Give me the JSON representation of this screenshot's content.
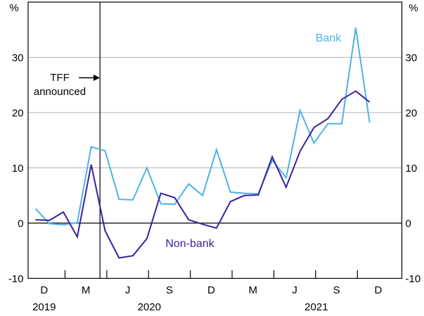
{
  "chart_data": {
    "type": "line",
    "title": "",
    "y_axis": {
      "unit_label": "%",
      "min": -10,
      "max": 40,
      "tick_values": [
        30,
        20,
        10,
        0,
        -10
      ],
      "gridline_values": [
        30,
        20,
        10
      ],
      "zero_line_value": 0,
      "tick_label_color": "#000000",
      "gridline_color": "#b3b3b3"
    },
    "x_axis": {
      "quarter_labels": [
        {
          "label": "D",
          "month_index": 1
        },
        {
          "label": "M",
          "month_index": 4
        },
        {
          "label": "J",
          "month_index": 7
        },
        {
          "label": "S",
          "month_index": 10
        },
        {
          "label": "D",
          "month_index": 13
        },
        {
          "label": "M",
          "month_index": 16
        },
        {
          "label": "J",
          "month_index": 19
        },
        {
          "label": "S",
          "month_index": 22
        },
        {
          "label": "D",
          "month_index": 25
        }
      ],
      "year_labels": [
        {
          "label": "2019",
          "month_index": 1
        },
        {
          "label": "2020",
          "month_index": 8.55
        },
        {
          "label": "2021",
          "month_index": 20.55
        }
      ]
    },
    "months": [
      "Nov 2019",
      "Dec 2019",
      "Jan 2020",
      "Feb 2020",
      "Mar 2020",
      "Apr 2020",
      "May 2020",
      "Jun 2020",
      "Jul 2020",
      "Aug 2020",
      "Sep 2020",
      "Oct 2020",
      "Nov 2020",
      "Dec 2020",
      "Jan 2021",
      "Feb 2021",
      "Mar 2021",
      "Apr 2021",
      "May 2021",
      "Jun 2021",
      "Jul 2021",
      "Aug 2021",
      "Sep 2021",
      "Oct 2021",
      "Nov 2021"
    ],
    "series": [
      {
        "name": "Bank",
        "color": "#4db2e6",
        "values": [
          2.6,
          -0.1,
          -0.3,
          0.1,
          13.8,
          13.1,
          4.3,
          4.2,
          10.0,
          3.5,
          3.4,
          7.1,
          5.0,
          13.3,
          5.6,
          5.4,
          5.3,
          11.4,
          8.2,
          20.4,
          14.5,
          18.0,
          18.0,
          35.4,
          18.2
        ]
      },
      {
        "name": "Non-bank",
        "color": "#3d1f9e",
        "values": [
          0.6,
          0.5,
          2.0,
          -2.5,
          10.6,
          -1.4,
          -6.3,
          -5.9,
          -2.8,
          5.4,
          4.6,
          0.6,
          -0.2,
          -0.9,
          3.9,
          5.0,
          5.1,
          12.0,
          6.5,
          13.0,
          17.3,
          18.9,
          22.4,
          23.9,
          21.9
        ]
      }
    ],
    "annotation": {
      "line1": "TFF",
      "line2": "announced",
      "event_month_index": 4.63,
      "arrow_color": "#000000"
    },
    "frame_color": "#000000",
    "legend_position": "inline-labels",
    "grid": "horizontal-only"
  }
}
